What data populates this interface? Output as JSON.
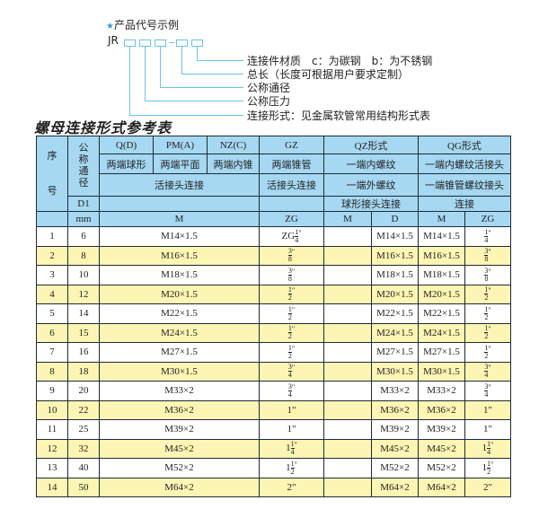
{
  "example": {
    "title": "产品代号示例",
    "star_icon": "star-icon",
    "code_prefix": "JR",
    "labels": [
      "连接件材质　c：为碳钢　b：为不锈钢",
      "总长（长度可根据用户要求定制）",
      "公称通径",
      "公称压力",
      "连接形式：见金属软管常用结构形式表"
    ]
  },
  "table_title": "螺母连接形式参考表",
  "header": {
    "seq": "序号",
    "seq_a": "序",
    "seq_b": "号",
    "nominal": "公称通径",
    "d1": "D1",
    "mm": "mm",
    "q": "Q(D)",
    "pm": "PM(A)",
    "nz": "NZ(C)",
    "gz": "GZ",
    "qz": "QZ形式",
    "qg": "QG形式",
    "q_desc": "两端球形",
    "pm_desc": "两端平面",
    "nz_desc": "两端内锥",
    "gz_desc": "两端锥管",
    "qz_desc": "一端内螺纹",
    "qg_desc": "一端内螺纹活接头",
    "union": "活接头连接",
    "gz_union": "活接头连接",
    "qz_ext": "一端外螺纹",
    "qg_taper": "一端锥管螺纹接头",
    "qz_ball": "球形接头连接",
    "qg_conn": "连接",
    "m": "M",
    "zg": "ZG",
    "qz_m": "M",
    "qz_d": "D",
    "qg_m": "M",
    "qg_zg": "ZG"
  },
  "colors": {
    "header_bg": "#a6d8f2",
    "alt_row": "#fdf5b3",
    "accent": "#69c3e8"
  },
  "rows": [
    {
      "no": "1",
      "dn": "6",
      "m": "M14×1.5",
      "zg_prefix": "ZG",
      "zg_whole": "",
      "zg_num": "1",
      "zg_den": "4",
      "zg_int": "",
      "qz_m": "",
      "qz_d": "M14×1.5",
      "qg_m": "M14×1.5",
      "qg_whole": "",
      "qg_num": "1",
      "qg_den": "4",
      "qg_int": ""
    },
    {
      "no": "2",
      "dn": "8",
      "m": "M16×1.5",
      "zg_prefix": "",
      "zg_whole": "",
      "zg_num": "3",
      "zg_den": "8",
      "zg_int": "",
      "qz_m": "",
      "qz_d": "M16×1.5",
      "qg_m": "M16×1.5",
      "qg_whole": "",
      "qg_num": "3",
      "qg_den": "8",
      "qg_int": ""
    },
    {
      "no": "3",
      "dn": "10",
      "m": "M18×1.5",
      "zg_prefix": "",
      "zg_whole": "",
      "zg_num": "3",
      "zg_den": "8",
      "zg_int": "",
      "qz_m": "",
      "qz_d": "M18×1.5",
      "qg_m": "M18×1.5",
      "qg_whole": "",
      "qg_num": "3",
      "qg_den": "8",
      "qg_int": ""
    },
    {
      "no": "4",
      "dn": "12",
      "m": "M20×1.5",
      "zg_prefix": "",
      "zg_whole": "",
      "zg_num": "1",
      "zg_den": "2",
      "zg_int": "",
      "qz_m": "",
      "qz_d": "M20×1.5",
      "qg_m": "M20×1.5",
      "qg_whole": "",
      "qg_num": "1",
      "qg_den": "2",
      "qg_int": ""
    },
    {
      "no": "5",
      "dn": "14",
      "m": "M22×1.5",
      "zg_prefix": "",
      "zg_whole": "",
      "zg_num": "1",
      "zg_den": "2",
      "zg_int": "",
      "qz_m": "",
      "qz_d": "M22×1.5",
      "qg_m": "M22×1.5",
      "qg_whole": "",
      "qg_num": "1",
      "qg_den": "2",
      "qg_int": ""
    },
    {
      "no": "6",
      "dn": "15",
      "m": "M24×1.5",
      "zg_prefix": "",
      "zg_whole": "",
      "zg_num": "1",
      "zg_den": "2",
      "zg_int": "",
      "qz_m": "",
      "qz_d": "M24×1.5",
      "qg_m": "M24×1.5",
      "qg_whole": "",
      "qg_num": "1",
      "qg_den": "2",
      "qg_int": ""
    },
    {
      "no": "7",
      "dn": "16",
      "m": "M27×1.5",
      "zg_prefix": "",
      "zg_whole": "",
      "zg_num": "1",
      "zg_den": "2",
      "zg_int": "",
      "qz_m": "",
      "qz_d": "M27×1.5",
      "qg_m": "M27×1.5",
      "qg_whole": "",
      "qg_num": "1",
      "qg_den": "2",
      "qg_int": ""
    },
    {
      "no": "8",
      "dn": "18",
      "m": "M30×1.5",
      "zg_prefix": "",
      "zg_whole": "",
      "zg_num": "3",
      "zg_den": "4",
      "zg_int": "",
      "qz_m": "",
      "qz_d": "M30×1.5",
      "qg_m": "M30×1.5",
      "qg_whole": "",
      "qg_num": "3",
      "qg_den": "4",
      "qg_int": ""
    },
    {
      "no": "9",
      "dn": "20",
      "m": "M33×2",
      "zg_prefix": "",
      "zg_whole": "",
      "zg_num": "3",
      "zg_den": "4",
      "zg_int": "",
      "qz_m": "",
      "qz_d": "M33×2",
      "qg_m": "M33×2",
      "qg_whole": "",
      "qg_num": "3",
      "qg_den": "4",
      "qg_int": ""
    },
    {
      "no": "10",
      "dn": "22",
      "m": "M36×2",
      "zg_prefix": "",
      "zg_whole": "",
      "zg_num": "",
      "zg_den": "",
      "zg_int": "1\"",
      "qz_m": "",
      "qz_d": "M36×2",
      "qg_m": "M36×2",
      "qg_whole": "",
      "qg_num": "",
      "qg_den": "",
      "qg_int": "1\""
    },
    {
      "no": "11",
      "dn": "25",
      "m": "M39×2",
      "zg_prefix": "",
      "zg_whole": "",
      "zg_num": "",
      "zg_den": "",
      "zg_int": "1\"",
      "qz_m": "",
      "qz_d": "M39×2",
      "qg_m": "M39×2",
      "qg_whole": "",
      "qg_num": "",
      "qg_den": "",
      "qg_int": "1\""
    },
    {
      "no": "12",
      "dn": "32",
      "m": "M45×2",
      "zg_prefix": "",
      "zg_whole": "1",
      "zg_num": "1",
      "zg_den": "4",
      "zg_int": "",
      "qz_m": "",
      "qz_d": "M45×2",
      "qg_m": "M45×2",
      "qg_whole": "1",
      "qg_num": "1",
      "qg_den": "4",
      "qg_int": ""
    },
    {
      "no": "13",
      "dn": "40",
      "m": "M52×2",
      "zg_prefix": "",
      "zg_whole": "1",
      "zg_num": "1",
      "zg_den": "2",
      "zg_int": "",
      "qz_m": "",
      "qz_d": "M52×2",
      "qg_m": "M52×2",
      "qg_whole": "1",
      "qg_num": "1",
      "qg_den": "2",
      "qg_int": ""
    },
    {
      "no": "14",
      "dn": "50",
      "m": "M64×2",
      "zg_prefix": "",
      "zg_whole": "",
      "zg_num": "",
      "zg_den": "",
      "zg_int": "2\"",
      "qz_m": "",
      "qz_d": "M64×2",
      "qg_m": "M64×2",
      "qg_whole": "",
      "qg_num": "",
      "qg_den": "",
      "qg_int": "2\""
    }
  ]
}
